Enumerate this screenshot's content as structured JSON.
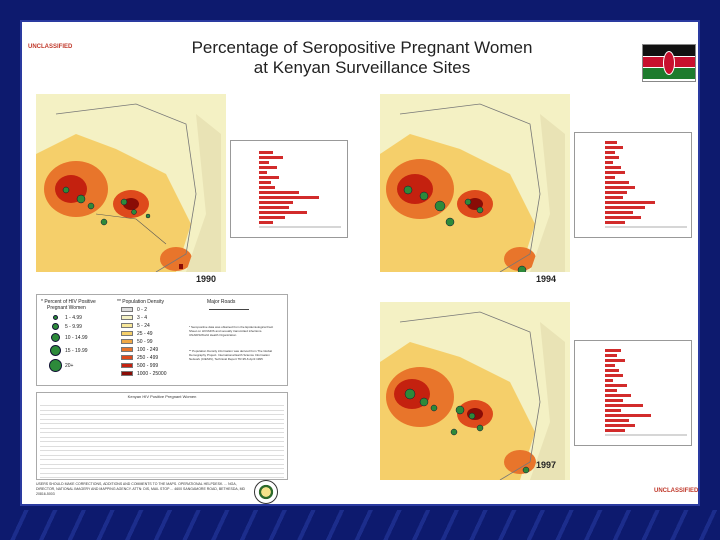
{
  "slide": {
    "classification_top": "UNCLASSIFIED",
    "classification_bottom": "UNCLASSIFIED",
    "title_line1": "Percentage of Seropositive Pregnant Women",
    "title_line2": "at Kenyan Surveillance Sites",
    "flag_icon": "kenya-flag-icon"
  },
  "maps": [
    {
      "year": "1990"
    },
    {
      "year": "1994"
    },
    {
      "year": "1997"
    }
  ],
  "legend": {
    "hiv_header_line1": "* Percent of HIV Positive",
    "hiv_header_line2": "Pregnant Women",
    "hiv_classes": [
      "1 - 4.99",
      "5 - 9.99",
      "10 - 14.99",
      "15 - 19.99",
      "20+"
    ],
    "density_header": "** Population Density",
    "density_classes": [
      "0 - 2",
      "3 - 4",
      "5 - 24",
      "25 - 49",
      "50 - 99",
      "100 - 249",
      "250 - 499",
      "500 - 999",
      "1000 - 25000"
    ],
    "density_colors": [
      "#dcdcdc",
      "#f4f1c4",
      "#f7e79a",
      "#f5cf6a",
      "#f0a845",
      "#e8752b",
      "#de4a1c",
      "#c4210f",
      "#8a0c06"
    ],
    "roads_header": "Major Roads",
    "note1": "* Seropositive data was obtained from the Epidemiological Fact Sheet on HIV/AIDS and sexually transmitted infections. UNAIDS/World Health Organization",
    "note2": "** Population Density information was derived from The Global Demography Project. International Earth Science Information Network (CIESIN), Technical Report TR-95-6 April 1995"
  },
  "table": {
    "title": "Kenyan HIV Positive Pregnant Women"
  },
  "footer": {
    "text": "USERS SHOULD MAKE CORRECTIONS, ADDITIONS AND COMMENTS TO THE MAPS. OPERATIONAL HELPDESK. ... NGA, DIRECTOR, NATIONAL IMAGERY AND MAPPING AGENCY. ATTN: DIS, MAIL STOP ... 4600 SANGAMORE ROAD, BETHESDA, MD 20816-5003",
    "seal_icon": "agency-seal-icon"
  }
}
